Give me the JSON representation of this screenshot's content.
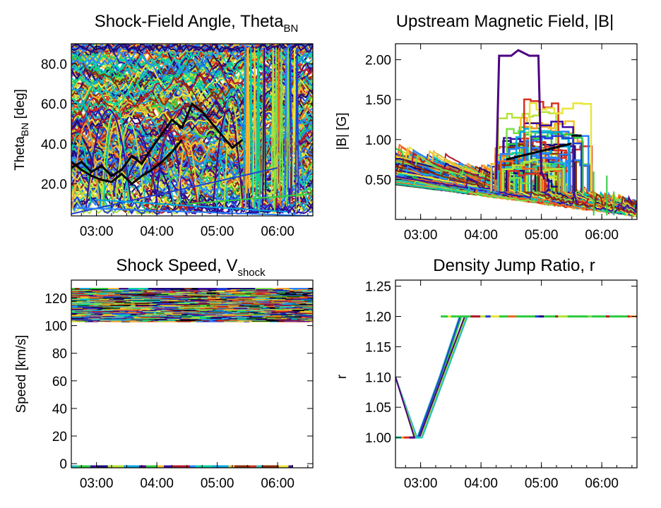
{
  "chart_data": [
    {
      "id": "theta",
      "type": "line",
      "title": "Shock-Field Angle, Theta",
      "title_sub": "BN",
      "ylabel": "Theta",
      "ylabel_sub": "BN",
      "ylabel_suffix": " [deg]",
      "xlim": [
        "02:35",
        "06:35"
      ],
      "ylim": [
        4,
        90
      ],
      "x_ticks": [
        "03:00",
        "04:00",
        "05:00",
        "06:00"
      ],
      "y_ticks": [
        {
          "value": 20,
          "label": "20.0"
        },
        {
          "value": 40,
          "label": "40.0"
        },
        {
          "value": 60,
          "label": "60.0"
        },
        {
          "value": 80,
          "label": "80.0"
        }
      ],
      "series_description": "hundreds of field-line traces in rainbow colors, angles spanning 5–90 deg, black reference traces",
      "black_series": [
        {
          "x": [
            "02:35",
            "02:45",
            "02:55",
            "03:05",
            "03:15",
            "03:25",
            "03:35",
            "03:45",
            "03:55",
            "04:05",
            "04:15",
            "04:25",
            "04:35",
            "04:45",
            "04:55",
            "05:05",
            "05:15",
            "05:25"
          ],
          "values": [
            28,
            31,
            26,
            29,
            24,
            27,
            34,
            30,
            38,
            45,
            52,
            48,
            60,
            56,
            50,
            44,
            38,
            42
          ]
        },
        {
          "x": [
            "02:35",
            "02:45",
            "02:55",
            "03:05",
            "03:15",
            "03:25",
            "03:35",
            "03:45",
            "03:55",
            "04:05",
            "04:15",
            "04:25"
          ],
          "values": [
            31,
            27,
            24,
            22,
            21,
            25,
            20,
            24,
            27,
            31,
            36,
            42
          ]
        }
      ]
    },
    {
      "id": "bfield",
      "type": "line",
      "title": "Upstream Magnetic Field, |B|",
      "ylabel": "|B| [G]",
      "xlim": [
        "02:35",
        "06:35"
      ],
      "ylim": [
        0.0,
        2.2
      ],
      "x_ticks": [
        "03:00",
        "04:00",
        "05:00",
        "06:00"
      ],
      "y_ticks": [
        {
          "value": 0.5,
          "label": "0.50"
        },
        {
          "value": 1.0,
          "label": "1.00"
        },
        {
          "value": 1.5,
          "label": "1.50"
        },
        {
          "value": 2.0,
          "label": "2.00"
        }
      ],
      "series_description": "many traces decaying from ~0.75 G at 02:35 to ~0.05 G at 06:35, with step-like bursts up to ~2.1 G between 04:15 and 05:20",
      "peak_series": {
        "name_color": "#4b0082",
        "x": [
          "04:15",
          "04:18",
          "04:30",
          "04:37",
          "04:48",
          "04:57",
          "05:00",
          "05:03"
        ],
        "values": [
          0.5,
          2.05,
          2.05,
          2.12,
          2.05,
          2.05,
          0.6,
          0.5
        ]
      }
    },
    {
      "id": "speed",
      "type": "line",
      "title": "Shock Speed, V",
      "title_sub": "shock",
      "ylabel": "Speed [km/s]",
      "xlim": [
        "02:35",
        "06:35"
      ],
      "ylim": [
        -3,
        133
      ],
      "x_ticks": [
        "03:00",
        "04:00",
        "05:00",
        "06:00"
      ],
      "y_ticks": [
        {
          "value": 0,
          "label": "0"
        },
        {
          "value": 20,
          "label": "20"
        },
        {
          "value": 40,
          "label": "40"
        },
        {
          "value": 60,
          "label": "60"
        },
        {
          "value": 80,
          "label": "80"
        },
        {
          "value": 100,
          "label": "100"
        },
        {
          "value": 120,
          "label": "120"
        }
      ],
      "band_range": [
        103,
        127
      ],
      "zero_line": {
        "x_end": "06:15",
        "value": -2
      },
      "series_description": "dense horizontal multicolor segments between 103 and 127 km/s across the whole interval"
    },
    {
      "id": "ratio",
      "type": "line",
      "title": "Density Jump Ratio, r",
      "ylabel": "r",
      "xlim": [
        "02:35",
        "06:35"
      ],
      "ylim": [
        0.95,
        1.26
      ],
      "x_ticks": [
        "03:00",
        "04:00",
        "05:00",
        "06:00"
      ],
      "y_ticks": [
        {
          "value": 1.0,
          "label": "1.00"
        },
        {
          "value": 1.05,
          "label": "1.05"
        },
        {
          "value": 1.1,
          "label": "1.10"
        },
        {
          "value": 1.15,
          "label": "1.15"
        },
        {
          "value": 1.2,
          "label": "1.20"
        },
        {
          "value": 1.25,
          "label": "1.25"
        }
      ],
      "series": [
        {
          "x": [
            "02:35",
            "02:55",
            "03:00",
            "03:45",
            "06:35"
          ],
          "values": [
            1.1,
            1.0,
            1.0,
            1.2,
            1.2
          ]
        },
        {
          "x": [
            "02:35",
            "02:58",
            "03:20",
            "03:40",
            "06:35"
          ],
          "values": [
            1.0,
            1.0,
            1.1,
            1.2,
            1.2
          ]
        }
      ],
      "plateau": {
        "x_start": "03:20",
        "x_end": "06:35",
        "value": 1.2
      }
    }
  ],
  "palette": [
    "#1b0b7a",
    "#3a0ca3",
    "#4b0082",
    "#1f3fd6",
    "#2a7fff",
    "#00a6e0",
    "#22c1c3",
    "#00d3a0",
    "#2ecc40",
    "#7ae04a",
    "#b7e33a",
    "#e8e63a",
    "#f2c12e",
    "#f29a2e",
    "#f06a1e",
    "#d7301f",
    "#b2182b",
    "#8c2d04"
  ],
  "black_color": "#000000"
}
